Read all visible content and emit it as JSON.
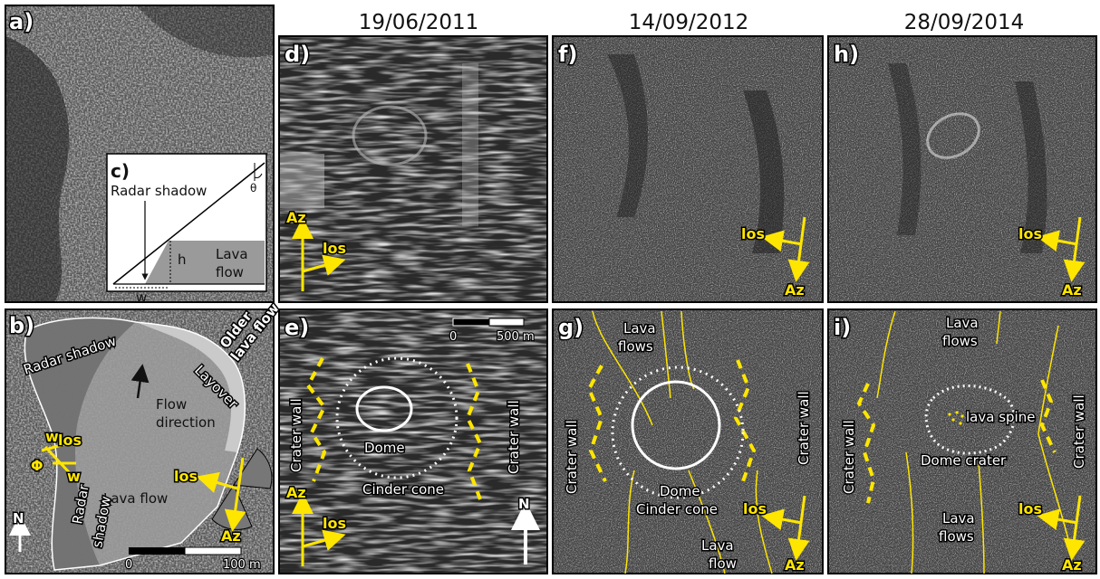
{
  "dates": [
    "19/06/2011",
    "14/09/2012",
    "28/09/2014"
  ],
  "panels": {
    "a": "a)",
    "b": "b)",
    "c": "c)",
    "d": "d)",
    "e": "e)",
    "f": "f)",
    "g": "g)",
    "h": "h)",
    "i": "i)"
  },
  "labels": {
    "b_radar_shadow_top": "Radar shadow",
    "b_older_lava": [
      "Older",
      "lava flow"
    ],
    "b_layover": "Layover",
    "b_flow_direction": [
      "Flow",
      "direction"
    ],
    "b_wlos": "w",
    "b_wlos_sub": "los",
    "b_phi": "Φ",
    "b_w": "w",
    "b_lava_flow": "Lava flow",
    "b_radar_shadow_bottom": [
      "Radar",
      "shadow"
    ],
    "b_north": "N",
    "c_radar_shadow": "Radar shadow",
    "c_theta": "θ",
    "c_h": "h",
    "c_lava": [
      "Lava",
      "flow"
    ],
    "c_w": "w",
    "e_crater_wall": "Crater wall",
    "e_dome": "Dome",
    "e_cinder_cone": "Cinder cone",
    "e_north": "N",
    "g_lava_flows": [
      "Lava",
      "flows"
    ],
    "g_crater_wall": "Crater wall",
    "g_dome": "Dome",
    "g_cinder_cone": "Cinder cone",
    "g_lava_flow": [
      "Lava",
      "flow"
    ],
    "i_lava_flows_top": [
      "Lava",
      "flows"
    ],
    "i_crater_wall": "Crater wall",
    "i_lava_spine": "lava spine",
    "i_dome_crater": "Dome crater",
    "i_lava_flows_bottom": [
      "Lava",
      "flows"
    ]
  },
  "vectors": {
    "az": "Az",
    "los": "los"
  },
  "scale_b": {
    "start": "0",
    "end": "100 m"
  },
  "scale_e": {
    "start": "0",
    "end": "500 m"
  },
  "colors": {
    "annotation": "#ffe600",
    "frame": "#000000",
    "background": "#ffffff"
  }
}
